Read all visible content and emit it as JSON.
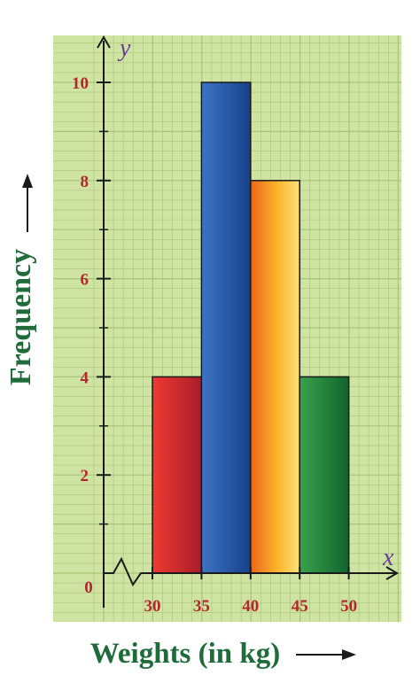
{
  "chart_data": {
    "type": "bar",
    "subtype": "histogram",
    "bins": [
      {
        "start": 30,
        "end": 35,
        "value": 4,
        "color": "red"
      },
      {
        "start": 35,
        "end": 40,
        "value": 10,
        "color": "blue"
      },
      {
        "start": 40,
        "end": 45,
        "value": 8,
        "color": "orange"
      },
      {
        "start": 45,
        "end": 50,
        "value": 4,
        "color": "green"
      }
    ],
    "x_ticks": [
      30,
      35,
      40,
      45,
      50
    ],
    "y_ticks": [
      2,
      4,
      6,
      8,
      10
    ],
    "origin_label": "0",
    "x_axis_letter": "x",
    "y_axis_letter": "y",
    "xlabel": "Weights (in kg)",
    "ylabel": "Frequency",
    "ylim": [
      0,
      10
    ],
    "axis_break": "zigzag on x-axis between 0 and 30",
    "grid": true,
    "colors": {
      "background": "#cfe3a3",
      "grid": "#a6c476",
      "axis": "#1a1a1a",
      "tick_text": "#b3272d",
      "axis_title": "#1f6b3a",
      "axis_letter": "#6a3d9a",
      "red": "#d7262b",
      "blue": "#2a5ca8",
      "orange": "#f6a51c",
      "green": "#2a8a3e"
    }
  }
}
